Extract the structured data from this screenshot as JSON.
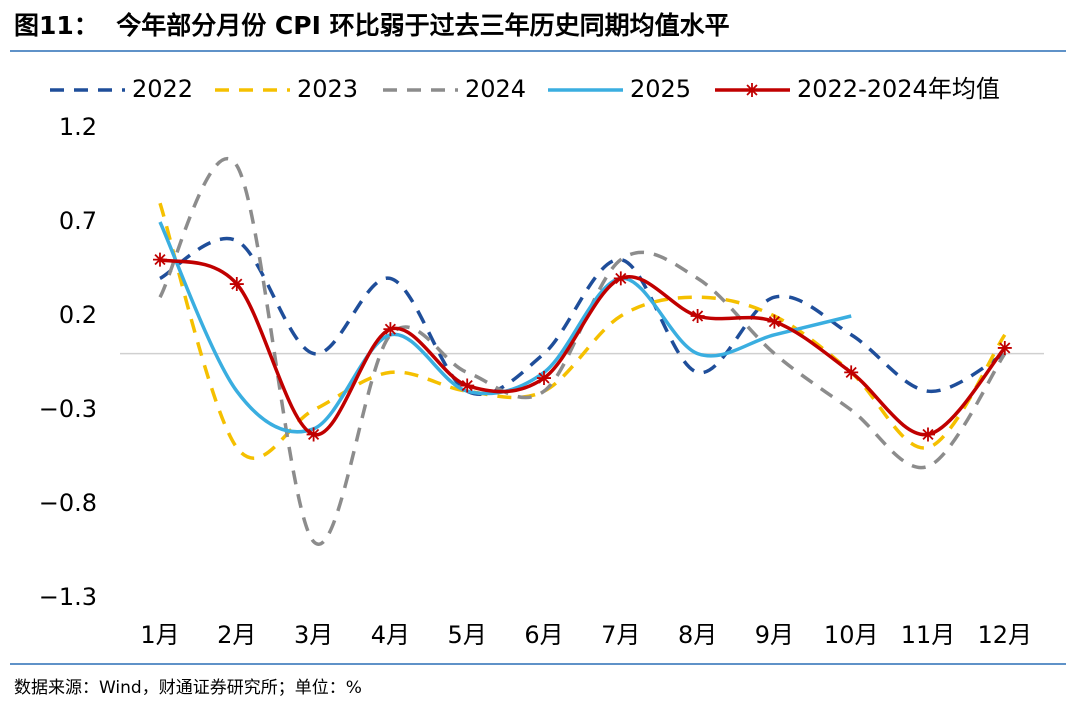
{
  "chart_data": {
    "type": "line",
    "title": "图11：  今年部分月份 CPI 环比弱于过去三年历史同期均值水平",
    "source": "数据来源：Wind，财通证券研究所；单位：%",
    "categories": [
      "1月",
      "2月",
      "3月",
      "4月",
      "5月",
      "6月",
      "7月",
      "8月",
      "9月",
      "10月",
      "11月",
      "12月"
    ],
    "series": [
      {
        "name": "2022",
        "color": "#1f4e9a",
        "style": "dashed",
        "values": [
          0.4,
          0.6,
          0.0,
          0.4,
          -0.2,
          0.0,
          0.5,
          -0.1,
          0.3,
          0.1,
          -0.2,
          0.0
        ]
      },
      {
        "name": "2023",
        "color": "#f5c000",
        "style": "dashed",
        "values": [
          0.8,
          -0.5,
          -0.3,
          -0.1,
          -0.2,
          -0.2,
          0.2,
          0.3,
          0.2,
          -0.1,
          -0.5,
          0.1
        ]
      },
      {
        "name": "2024",
        "color": "#8c8c8c",
        "style": "dashed",
        "values": [
          0.3,
          1.0,
          -1.0,
          0.1,
          -0.1,
          -0.2,
          0.5,
          0.4,
          0.0,
          -0.3,
          -0.6,
          0.0
        ]
      },
      {
        "name": "2025",
        "color": "#3aaee0",
        "style": "solid",
        "values": [
          0.7,
          -0.2,
          -0.4,
          0.1,
          -0.2,
          -0.1,
          0.4,
          0.0,
          0.1,
          0.2,
          null,
          null
        ]
      },
      {
        "name": "2022-2024年均值",
        "color": "#c00000",
        "style": "solid",
        "marker": "star",
        "values": [
          0.5,
          0.37,
          -0.43,
          0.13,
          -0.17,
          -0.13,
          0.4,
          0.2,
          0.17,
          -0.1,
          -0.43,
          0.03
        ]
      }
    ],
    "ylim": [
      -1.3,
      1.2
    ],
    "yticks": [
      {
        "value": 1.2,
        "label": "1.2"
      },
      {
        "value": 0.7,
        "label": "0.7"
      },
      {
        "value": 0.2,
        "label": "0.2"
      },
      {
        "value": -0.3,
        "label": "−0.3"
      },
      {
        "value": -0.8,
        "label": "−0.8"
      },
      {
        "value": -1.3,
        "label": "−1.3"
      }
    ],
    "legend": "top"
  }
}
